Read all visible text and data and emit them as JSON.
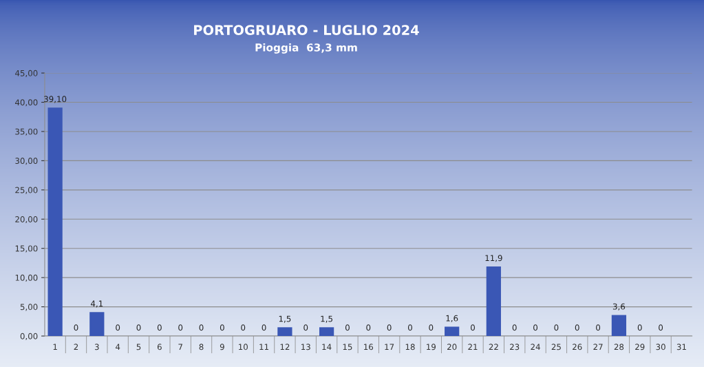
{
  "chart_data": {
    "type": "bar",
    "title": "PORTOGRUARO - LUGLIO 2024",
    "subtitle": "Pioggia  63,3 mm",
    "categories": [
      "1",
      "2",
      "3",
      "4",
      "5",
      "6",
      "7",
      "8",
      "9",
      "10",
      "11",
      "12",
      "13",
      "14",
      "15",
      "16",
      "17",
      "18",
      "19",
      "20",
      "21",
      "22",
      "23",
      "24",
      "25",
      "26",
      "27",
      "28",
      "29",
      "30",
      "31"
    ],
    "values": [
      39.1,
      0,
      4.1,
      0,
      0,
      0,
      0,
      0,
      0,
      0,
      0,
      1.5,
      0,
      1.5,
      0,
      0,
      0,
      0,
      0,
      1.6,
      0,
      11.9,
      0,
      0,
      0,
      0,
      0,
      3.6,
      0,
      0,
      null
    ],
    "value_labels": [
      "39,10",
      "0",
      "4,1",
      "0",
      "0",
      "0",
      "0",
      "0",
      "0",
      "0",
      "0",
      "1,5",
      "0",
      "1,5",
      "0",
      "0",
      "0",
      "0",
      "0",
      "1,6",
      "0",
      "11,9",
      "0",
      "0",
      "0",
      "0",
      "0",
      "3,6",
      "0",
      "0",
      null
    ],
    "color": "#3a57b5",
    "ylim": [
      0,
      45
    ],
    "yticks": [
      {
        "value": 0,
        "label": "0,00"
      },
      {
        "value": 5,
        "label": "5,00"
      },
      {
        "value": 10,
        "label": "10,00"
      },
      {
        "value": 15,
        "label": "15,00"
      },
      {
        "value": 20,
        "label": "20,00"
      },
      {
        "value": 25,
        "label": "25,00"
      },
      {
        "value": 30,
        "label": "30,00"
      },
      {
        "value": 35,
        "label": "35,00"
      },
      {
        "value": 40,
        "label": "40,00"
      },
      {
        "value": 45,
        "label": "45,00"
      }
    ],
    "grid": "y"
  }
}
